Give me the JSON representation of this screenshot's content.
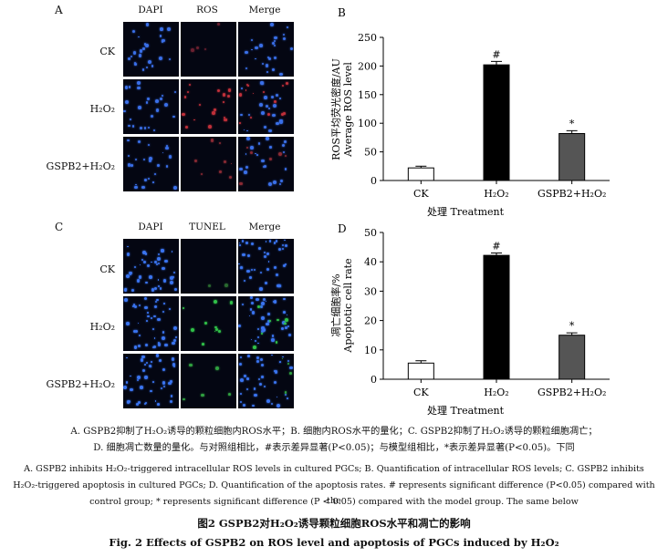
{
  "panel_a": {
    "label": "A",
    "columns": [
      "DAPI",
      "ROS",
      "Merge"
    ],
    "rows": [
      "CK",
      "H₂O₂",
      "GSPB2+H₂O₂"
    ]
  },
  "panel_c": {
    "label": "C",
    "columns": [
      "DAPI",
      "TUNEL",
      "Merge"
    ],
    "rows": [
      "CK",
      "H₂O₂",
      "GSPB2+H₂O₂"
    ]
  },
  "chart_data": [
    {
      "panel_label": "B",
      "type": "bar",
      "categories": [
        "CK",
        "H₂O₂",
        "GSPB2+H₂O₂"
      ],
      "values": [
        22,
        202,
        82
      ],
      "errors": [
        3,
        6,
        5
      ],
      "markers": [
        "",
        "#",
        "*"
      ],
      "bar_colors": [
        "#ffffff",
        "#000000",
        "#555555"
      ],
      "ylabel_cn": "ROS平均荧光密度/AU",
      "ylabel_en": "Average ROS level",
      "xlabel": "处理 Treatment",
      "ylim": [
        0,
        250
      ],
      "yticks": [
        0,
        50,
        100,
        150,
        200,
        250
      ],
      "grid": false
    },
    {
      "panel_label": "D",
      "type": "bar",
      "categories": [
        "CK",
        "H₂O₂",
        "GSPB2+H₂O₂"
      ],
      "values": [
        5.5,
        42.2,
        15
      ],
      "errors": [
        0.8,
        0.8,
        0.8
      ],
      "markers": [
        "",
        "#",
        "*"
      ],
      "bar_colors": [
        "#ffffff",
        "#000000",
        "#555555"
      ],
      "ylabel_cn": "凋亡细胞率/%",
      "ylabel_en": "Apoptotic cell rate",
      "xlabel": "处理 Treatment",
      "ylim": [
        0,
        50
      ],
      "yticks": [
        0,
        10,
        20,
        30,
        40,
        50
      ],
      "grid": false
    }
  ],
  "caption": {
    "cn_line1": "A. GSPB2抑制了H₂O₂诱导的颗粒细胞内ROS水平；B. 细胞内ROS水平的量化；C. GSPB2抑制了H₂O₂诱导的颗粒细胞凋亡；",
    "cn_line2": "D. 细胞凋亡数量的量化。与对照组相比，#表示差异显著(P<0.05)；与模型组相比，*表示差异显著(P<0.05)。下同",
    "en_line1": "A. GSPB2 inhibits H₂O₂-triggered intracellular ROS levels in cultured PGCs; B. Quantification of intracellular ROS levels; C. GSPB2 inhibits",
    "en_line2": "H₂O₂-triggered apoptosis in cultured PGCs; D. Quantification of the apoptosis rates. # represents significant difference (P<0.05) compared with the",
    "en_line3": "control group; * represents significant difference (P < 0.05) compared with the model group. The same below",
    "title_cn": "图2   GSPB2对H₂O₂诱导颗粒细胞ROS水平和凋亡的影响",
    "title_en": "Fig. 2    Effects of GSPB2 on ROS level and apoptosis of PGCs induced by H₂O₂"
  }
}
